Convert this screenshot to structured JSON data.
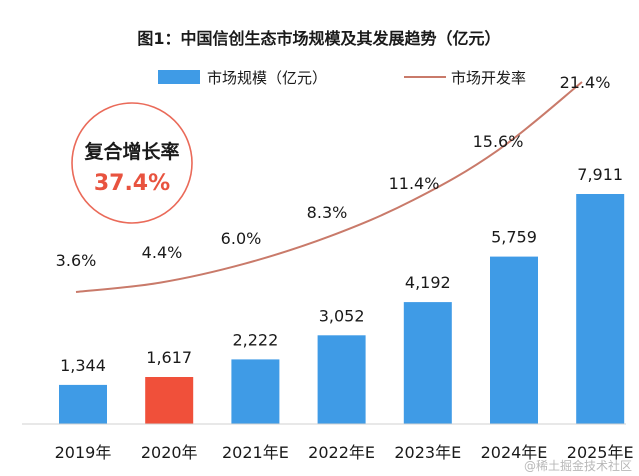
{
  "colors": {
    "bar": "#3f9be6",
    "bar_highlight": "#f0503a",
    "line": "#c97a6a",
    "cagr_circle": "#ea6a59",
    "cagr_value": "#e8533f"
  },
  "cagr": {
    "title": "复合增长率",
    "value": "37.4%"
  },
  "watermark": "@稀土掘金技术社区",
  "chart_data": {
    "type": "bar",
    "title": "图1：中国信创生态市场规模及其发展趋势（亿元）",
    "categories": [
      "2019年",
      "2020年",
      "2021年E",
      "2022年E",
      "2023年E",
      "2024年E",
      "2025年E"
    ],
    "highlight_index": 1,
    "series": [
      {
        "name": "市场规模（亿元）",
        "type": "bar",
        "values": [
          1344,
          1617,
          2222,
          3052,
          4192,
          5759,
          7911
        ],
        "labels": [
          "1,344",
          "1,617",
          "2,222",
          "3,052",
          "4,192",
          "5,759",
          "7,911"
        ]
      },
      {
        "name": "市场开发率",
        "type": "line",
        "values": [
          3.6,
          4.4,
          6.0,
          8.3,
          11.4,
          15.6,
          21.4
        ],
        "labels": [
          "3.6%",
          "4.4%",
          "6.0%",
          "8.3%",
          "11.4%",
          "15.6%",
          "21.4%"
        ]
      }
    ],
    "ylim": [
      0,
      8000
    ],
    "y2lim": [
      0,
      25
    ],
    "legend": "top-center",
    "grid": false
  }
}
